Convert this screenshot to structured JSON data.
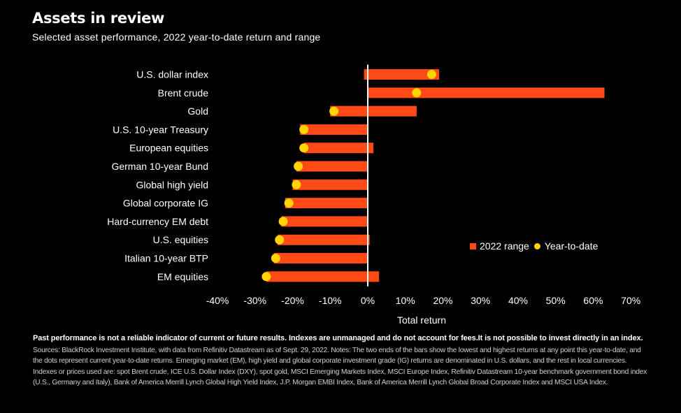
{
  "header": {
    "title": "Assets in review",
    "subtitle": "Selected asset performance, 2022 year-to-date return and range"
  },
  "legend": {
    "range_label": "2022 range",
    "ytd_label": "Year-to-date"
  },
  "colors": {
    "range": "#ff4a17",
    "ytd": "#ffd400",
    "zero_line": "#ffffff"
  },
  "chart_data": {
    "type": "bar",
    "orientation": "horizontal",
    "xlabel": "Total return",
    "xlim": [
      -40,
      70
    ],
    "xticks": [
      -40,
      -30,
      -20,
      -10,
      0,
      10,
      20,
      30,
      40,
      50,
      60,
      70
    ],
    "xtick_labels": [
      "-40%",
      "-30%",
      "-20%",
      "-10%",
      "0%",
      "10%",
      "20%",
      "30%",
      "40%",
      "50%",
      "60%",
      "70%"
    ],
    "legend_position": "right",
    "grid": false,
    "categories": [
      "U.S. dollar index",
      "Brent crude",
      "Gold",
      "U.S. 10-year Treasury",
      "European equities",
      "German 10-year Bund",
      "Global high yield",
      "Global corporate IG",
      "Hard-currency EM debt",
      "U.S. equities",
      "Italian 10-year BTP",
      "EM equities"
    ],
    "series": [
      {
        "name": "2022 range",
        "type": "range",
        "low": [
          -1,
          0,
          -10,
          -18,
          -17,
          -19,
          -20,
          -22,
          -23,
          -24,
          -25,
          -27
        ],
        "high": [
          19,
          63,
          13,
          0,
          1.5,
          0,
          0,
          0,
          0,
          0.5,
          0,
          3
        ]
      },
      {
        "name": "Year-to-date",
        "type": "dot",
        "values": [
          17,
          13,
          -9,
          -17,
          -17,
          -18.5,
          -19,
          -21,
          -22.5,
          -23.5,
          -24.5,
          -27
        ]
      }
    ]
  },
  "footnote": {
    "bold": "Past performance is not a reliable indicator of current or future results. Indexes are unmanaged and do not account for fees.It is not possible to invest directly in an index.",
    "sources": "Sources: BlackRock Investment Institute, with data from Refinitiv Datastream as of Sept. 29, 2022. Notes: The two ends of the bars show the lowest and highest returns at any point this year-to-date, and the dots represent current year-to-date returns. Emerging market (EM), high yield and global corporate investment grade (IG) returns are denominated in U.S. dollars, and the rest in local currencies. Indexes or prices used are: spot Brent crude, ICE U.S. Dollar Index (DXY), spot gold, MSCI Emerging Markets Index, MSCI Europe Index, Refinitiv Datastream 10-year benchmark government bond index (U.S., Germany and Italy), Bank of America Merrill Lynch Global High Yield Index, J.P. Morgan EMBI Index, Bank of America Merrill Lynch Global Broad Corporate Index and MSCI USA Index."
  }
}
